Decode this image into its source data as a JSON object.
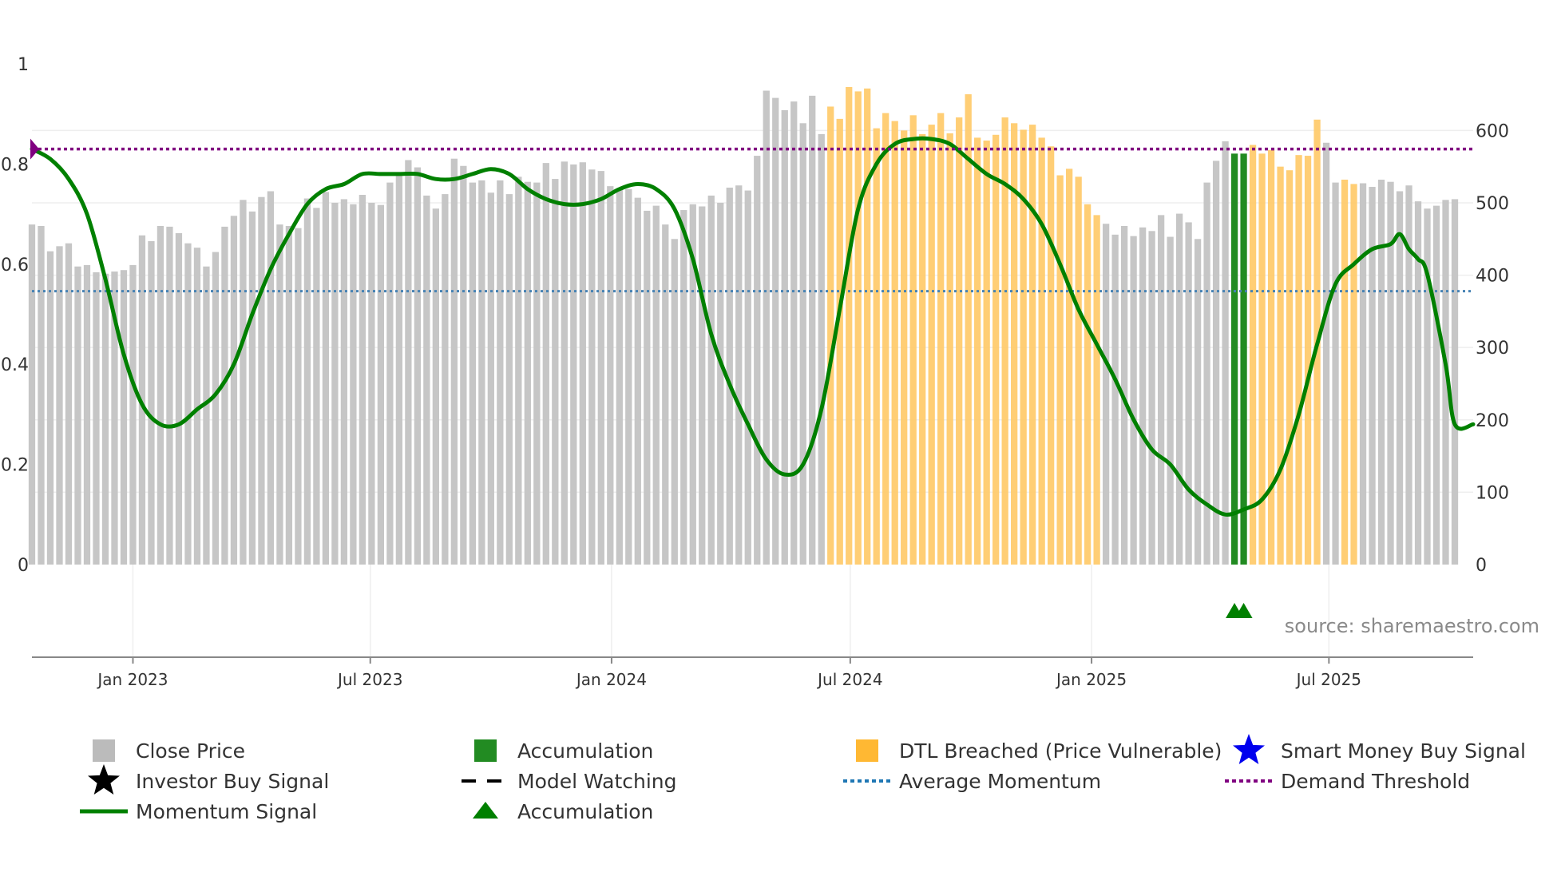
{
  "chart_data": {
    "type": "bar",
    "title": "",
    "source": "source: sharemaestro.com",
    "x_range": [
      "2022-10-16",
      "2025-10-19"
    ],
    "left_axis": {
      "ylim": [
        0,
        1
      ],
      "ticks": [
        0,
        0.2,
        0.4,
        0.6,
        0.8,
        1
      ],
      "tick_labels": [
        "0",
        "0.2",
        "0.4",
        "0.6",
        "0.8",
        "1"
      ]
    },
    "right_axis": {
      "ylim": [
        0,
        692
      ],
      "ticks": [
        0,
        100,
        200,
        300,
        400,
        500,
        600
      ],
      "tick_labels": [
        "0",
        "100",
        "200",
        "300",
        "400",
        "500",
        "600"
      ]
    },
    "date_ticks": [
      {
        "date": "2023-01-01",
        "label": "Jan 2023"
      },
      {
        "date": "2023-07-01",
        "label": "Jul 2023"
      },
      {
        "date": "2024-01-01",
        "label": "Jan 2024"
      },
      {
        "date": "2024-07-01",
        "label": "Jul 2024"
      },
      {
        "date": "2025-01-01",
        "label": "Jan 2025"
      },
      {
        "date": "2025-07-01",
        "label": "Jul 2025"
      }
    ],
    "close_price": {
      "start_date": "2022-10-16",
      "interval_days": 7,
      "values": [
        470,
        468,
        433,
        440,
        444,
        412,
        414,
        404,
        402,
        405,
        407,
        414,
        455,
        447,
        468,
        467,
        458,
        444,
        438,
        412,
        432,
        467,
        482,
        504,
        488,
        508,
        516,
        470,
        468,
        465,
        506,
        493,
        515,
        500,
        505,
        498,
        511,
        500,
        497,
        528,
        542,
        559,
        549,
        510,
        492,
        512,
        561,
        551,
        528,
        531,
        514,
        531,
        512,
        536,
        529,
        528,
        555,
        533,
        557,
        553,
        556,
        546,
        544,
        523,
        520,
        519,
        507,
        489,
        496,
        470,
        450,
        490,
        498,
        495,
        510,
        500,
        521,
        524,
        517,
        565,
        655,
        645,
        628,
        640,
        610,
        648,
        595,
        633,
        616,
        660,
        654,
        658,
        603,
        624,
        613,
        600,
        621,
        595,
        608,
        624,
        596,
        618,
        650,
        590,
        586,
        594,
        618,
        610,
        601,
        608,
        590,
        578,
        538,
        547,
        536,
        498,
        483,
        471,
        456,
        468,
        454,
        466,
        461,
        483,
        453,
        485,
        473,
        450,
        528,
        558,
        585,
        568,
        568,
        580,
        568,
        573,
        550,
        545,
        566,
        565,
        615,
        583,
        528,
        532,
        526,
        527,
        522,
        532,
        529,
        516,
        524,
        502,
        492,
        496,
        504,
        505
      ]
    },
    "price_highlights": [
      {
        "category": "DTL Breached (Price Vulnerable)",
        "color": "#FFA500",
        "from_date": "2024-06-16",
        "to_date": "2025-01-05"
      },
      {
        "category": "Accumulation",
        "color": "#228B22",
        "from_date": "2025-04-20",
        "to_date": "2025-04-27"
      },
      {
        "category": "DTL Breached (Price Vulnerable)",
        "color": "#FFA500",
        "from_date": "2025-05-04",
        "to_date": "2025-06-22"
      },
      {
        "category": "DTL Breached (Price Vulnerable)",
        "color": "#FFA500",
        "from_date": "2025-07-13",
        "to_date": "2025-07-20"
      }
    ],
    "momentum_signal": {
      "points": [
        [
          "2022-10-16",
          0.83
        ],
        [
          "2022-10-30",
          0.81
        ],
        [
          "2022-11-13",
          0.77
        ],
        [
          "2022-11-27",
          0.7
        ],
        [
          "2022-12-11",
          0.57
        ],
        [
          "2022-12-25",
          0.42
        ],
        [
          "2023-01-08",
          0.32
        ],
        [
          "2023-01-22",
          0.28
        ],
        [
          "2023-02-05",
          0.28
        ],
        [
          "2023-02-19",
          0.31
        ],
        [
          "2023-03-05",
          0.34
        ],
        [
          "2023-03-19",
          0.4
        ],
        [
          "2023-04-02",
          0.5
        ],
        [
          "2023-04-16",
          0.59
        ],
        [
          "2023-04-30",
          0.66
        ],
        [
          "2023-05-14",
          0.72
        ],
        [
          "2023-05-28",
          0.75
        ],
        [
          "2023-06-11",
          0.76
        ],
        [
          "2023-06-25",
          0.78
        ],
        [
          "2023-07-09",
          0.78
        ],
        [
          "2023-07-23",
          0.78
        ],
        [
          "2023-08-06",
          0.78
        ],
        [
          "2023-08-20",
          0.77
        ],
        [
          "2023-09-03",
          0.77
        ],
        [
          "2023-09-17",
          0.78
        ],
        [
          "2023-10-01",
          0.79
        ],
        [
          "2023-10-15",
          0.78
        ],
        [
          "2023-10-29",
          0.75
        ],
        [
          "2023-11-12",
          0.73
        ],
        [
          "2023-11-26",
          0.72
        ],
        [
          "2023-12-10",
          0.72
        ],
        [
          "2023-12-24",
          0.73
        ],
        [
          "2024-01-07",
          0.75
        ],
        [
          "2024-01-21",
          0.76
        ],
        [
          "2024-02-04",
          0.75
        ],
        [
          "2024-02-18",
          0.71
        ],
        [
          "2024-03-03",
          0.61
        ],
        [
          "2024-03-17",
          0.46
        ],
        [
          "2024-03-31",
          0.36
        ],
        [
          "2024-04-14",
          0.28
        ],
        [
          "2024-04-28",
          0.21
        ],
        [
          "2024-05-12",
          0.18
        ],
        [
          "2024-05-26",
          0.2
        ],
        [
          "2024-06-09",
          0.31
        ],
        [
          "2024-06-23",
          0.51
        ],
        [
          "2024-07-07",
          0.71
        ],
        [
          "2024-07-21",
          0.8
        ],
        [
          "2024-08-04",
          0.84
        ],
        [
          "2024-08-18",
          0.85
        ],
        [
          "2024-09-01",
          0.85
        ],
        [
          "2024-09-15",
          0.84
        ],
        [
          "2024-09-29",
          0.81
        ],
        [
          "2024-10-13",
          0.78
        ],
        [
          "2024-10-27",
          0.76
        ],
        [
          "2024-11-10",
          0.73
        ],
        [
          "2024-11-24",
          0.68
        ],
        [
          "2024-12-08",
          0.6
        ],
        [
          "2024-12-22",
          0.51
        ],
        [
          "2025-01-05",
          0.44
        ],
        [
          "2025-01-19",
          0.37
        ],
        [
          "2025-02-02",
          0.29
        ],
        [
          "2025-02-16",
          0.23
        ],
        [
          "2025-03-02",
          0.2
        ],
        [
          "2025-03-16",
          0.15
        ],
        [
          "2025-03-30",
          0.12
        ],
        [
          "2025-04-13",
          0.1
        ],
        [
          "2025-04-27",
          0.11
        ],
        [
          "2025-05-11",
          0.13
        ],
        [
          "2025-05-25",
          0.19
        ],
        [
          "2025-06-08",
          0.3
        ],
        [
          "2025-06-22",
          0.44
        ],
        [
          "2025-07-06",
          0.56
        ],
        [
          "2025-07-20",
          0.6
        ],
        [
          "2025-08-03",
          0.63
        ],
        [
          "2025-08-17",
          0.64
        ],
        [
          "2025-08-24",
          0.66
        ],
        [
          "2025-08-31",
          0.63
        ],
        [
          "2025-09-07",
          0.61
        ],
        [
          "2025-09-14",
          0.58
        ],
        [
          "2025-09-28",
          0.4
        ],
        [
          "2025-10-05",
          0.28
        ],
        [
          "2025-10-19",
          0.28
        ]
      ]
    },
    "average_momentum": 0.546,
    "demand_threshold": 0.83,
    "accumulation_markers": [
      "2025-04-20",
      "2025-04-27"
    ],
    "legend": [
      {
        "key": "close-price",
        "label": "Close Price",
        "symbol": "square",
        "color": "#bbbbbb"
      },
      {
        "key": "accumulation-bar",
        "label": "Accumulation",
        "symbol": "square",
        "color": "#228B22"
      },
      {
        "key": "dtl-breached",
        "label": "DTL Breached (Price Vulnerable)",
        "symbol": "square",
        "color": "#FFA500"
      },
      {
        "key": "smart-money-buy-signal",
        "label": "Smart Money Buy Signal",
        "symbol": "star",
        "color": "#0000ee"
      },
      {
        "key": "investor-buy-signal",
        "label": "Investor Buy Signal",
        "symbol": "star",
        "color": "#000000"
      },
      {
        "key": "model-watching",
        "label": "Model Watching",
        "symbol": "dash",
        "color": "#000000"
      },
      {
        "key": "average-momentum",
        "label": "Average Momentum",
        "symbol": "dot",
        "color": "#1f77b4"
      },
      {
        "key": "demand-threshold",
        "label": "Demand Threshold",
        "symbol": "dot",
        "color": "#800080"
      },
      {
        "key": "momentum-signal",
        "label": "Momentum Signal",
        "symbol": "line",
        "color": "#008000"
      },
      {
        "key": "accumulation-marker",
        "label": "Accumulation",
        "symbol": "triangle",
        "color": "#008000"
      }
    ]
  },
  "colors": {
    "close_bar": "#c6c6c6",
    "dtl_bar": "#FFC966",
    "accumulation_bar": "#228B22",
    "momentum_line": "#008000",
    "average_line": "#4682B4",
    "threshold_line": "#800080",
    "grid": "#eeeeee",
    "axis": "#888888"
  }
}
